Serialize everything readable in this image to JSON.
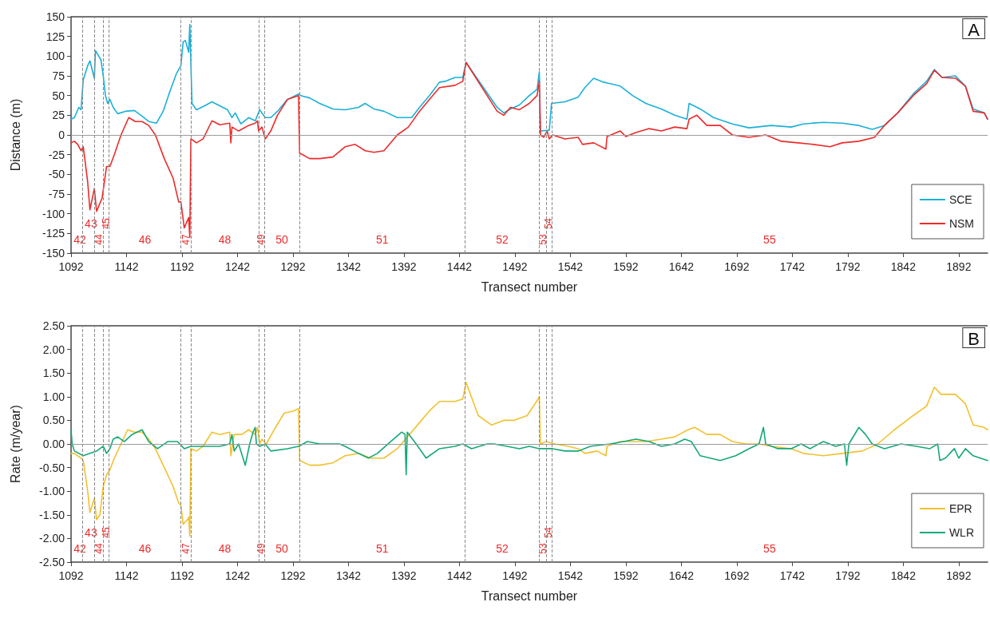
{
  "chart_data": [
    {
      "type": "line",
      "xlabel": "Transect number",
      "ylabel": "Distance (m)",
      "xlim": [
        1092,
        1918
      ],
      "xticks": [
        1092,
        1142,
        1192,
        1242,
        1292,
        1342,
        1392,
        1442,
        1492,
        1542,
        1592,
        1642,
        1692,
        1742,
        1792,
        1842,
        1892
      ],
      "ylim": [
        -150,
        150
      ],
      "yticks": [
        -150,
        -125,
        -100,
        -75,
        -50,
        -25,
        0,
        25,
        50,
        75,
        100,
        125,
        150
      ],
      "grid": false,
      "legend": "bottom right",
      "marker": "none",
      "line_style": "solid",
      "series": [
        {
          "name": "SCE",
          "color": "#1ab0d8",
          "x": [
            1092,
            1095,
            1099,
            1101,
            1103,
            1107,
            1109,
            1113,
            1114,
            1117,
            1119,
            1121,
            1123,
            1125,
            1127,
            1130,
            1134,
            1141,
            1149,
            1155,
            1162,
            1169,
            1175,
            1181,
            1187,
            1191,
            1193,
            1195,
            1198,
            1199,
            1201,
            1205,
            1211,
            1219,
            1226,
            1233,
            1237,
            1240,
            1245,
            1252,
            1258,
            1262,
            1267,
            1272,
            1278,
            1287,
            1297,
            1299,
            1307,
            1316,
            1328,
            1339,
            1351,
            1357,
            1365,
            1374,
            1386,
            1399,
            1406,
            1415,
            1424,
            1429,
            1438,
            1445,
            1448,
            1476,
            1482,
            1488,
            1496,
            1505,
            1512,
            1514,
            1515,
            1523,
            1525,
            1537,
            1549,
            1555,
            1563,
            1572,
            1587,
            1598,
            1610,
            1624,
            1636,
            1647,
            1649,
            1659,
            1671,
            1688,
            1703,
            1723,
            1741,
            1752,
            1770,
            1787,
            1802,
            1814,
            1825,
            1837,
            1851,
            1863,
            1870,
            1877,
            1889,
            1898,
            1905,
            1915,
            1918
          ],
          "values": [
            20,
            22,
            35,
            32,
            70,
            88,
            94,
            72,
            107,
            100,
            95,
            75,
            50,
            40,
            45,
            35,
            27,
            30,
            31,
            25,
            17,
            15,
            30,
            55,
            78,
            88,
            118,
            120,
            105,
            140,
            40,
            32,
            36,
            42,
            37,
            32,
            22,
            28,
            14,
            22,
            18,
            32,
            22,
            22,
            30,
            45,
            52,
            50,
            47,
            40,
            33,
            32,
            35,
            40,
            33,
            30,
            22,
            22,
            35,
            50,
            67,
            68,
            73,
            73,
            92,
            35,
            28,
            33,
            38,
            50,
            58,
            80,
            5,
            6,
            40,
            42,
            48,
            60,
            72,
            67,
            62,
            50,
            40,
            33,
            25,
            20,
            40,
            33,
            22,
            14,
            9,
            12,
            10,
            14,
            16,
            15,
            12,
            7,
            12,
            28,
            52,
            68,
            83,
            73,
            75,
            62,
            33,
            28,
            20
          ]
        },
        {
          "name": "NSM",
          "color": "#ee2a2a",
          "x": [
            1092,
            1095,
            1098,
            1101,
            1103,
            1107,
            1109,
            1113,
            1115,
            1120,
            1123,
            1124,
            1127,
            1131,
            1137,
            1144,
            1150,
            1156,
            1162,
            1168,
            1176,
            1184,
            1189,
            1191,
            1194,
            1198,
            1199,
            1200,
            1205,
            1211,
            1219,
            1226,
            1235,
            1236,
            1237,
            1243,
            1252,
            1258,
            1260,
            1261,
            1264,
            1267,
            1272,
            1278,
            1287,
            1297,
            1298,
            1307,
            1316,
            1328,
            1339,
            1348,
            1357,
            1365,
            1374,
            1386,
            1396,
            1406,
            1415,
            1424,
            1438,
            1445,
            1448,
            1476,
            1482,
            1488,
            1496,
            1505,
            1512,
            1514,
            1515,
            1518,
            1521,
            1523,
            1526,
            1537,
            1549,
            1553,
            1563,
            1574,
            1575,
            1587,
            1592,
            1601,
            1613,
            1624,
            1636,
            1647,
            1649,
            1656,
            1665,
            1677,
            1688,
            1703,
            1718,
            1732,
            1747,
            1761,
            1776,
            1787,
            1802,
            1816,
            1825,
            1837,
            1851,
            1863,
            1870,
            1877,
            1889,
            1898,
            1905,
            1915,
            1918
          ],
          "values": [
            -10,
            -8,
            -12,
            -20,
            -15,
            -60,
            -95,
            -68,
            -97,
            -80,
            -50,
            -40,
            -40,
            -25,
            0,
            22,
            17,
            17,
            12,
            0,
            -30,
            -55,
            -85,
            -85,
            -118,
            -105,
            -130,
            -5,
            -10,
            -5,
            18,
            13,
            15,
            -10,
            10,
            5,
            12,
            15,
            18,
            5,
            10,
            -5,
            5,
            25,
            45,
            50,
            -23,
            -30,
            -30,
            -28,
            -15,
            -12,
            -20,
            -22,
            -20,
            0,
            10,
            30,
            45,
            60,
            63,
            68,
            92,
            30,
            25,
            35,
            32,
            40,
            50,
            68,
            0,
            -3,
            5,
            -5,
            0,
            -5,
            -3,
            -12,
            -10,
            -18,
            -2,
            5,
            -2,
            3,
            8,
            5,
            10,
            8,
            20,
            25,
            12,
            12,
            0,
            -3,
            0,
            -8,
            -10,
            -12,
            -15,
            -10,
            -8,
            -3,
            12,
            28,
            50,
            65,
            82,
            73,
            72,
            62,
            30,
            28,
            20
          ]
        }
      ],
      "ref_lines": [
        {
          "axis": "y",
          "value": 0
        },
        {
          "axis": "x",
          "value": 1102
        },
        {
          "axis": "x",
          "value": 1113
        },
        {
          "axis": "x",
          "value": 1121
        },
        {
          "axis": "x",
          "value": 1126
        },
        {
          "axis": "x",
          "value": 1191
        },
        {
          "axis": "x",
          "value": 1200
        },
        {
          "axis": "x",
          "value": 1261
        },
        {
          "axis": "x",
          "value": 1266
        },
        {
          "axis": "x",
          "value": 1298
        },
        {
          "axis": "x",
          "value": 1447
        },
        {
          "axis": "x",
          "value": 1514
        },
        {
          "axis": "x",
          "value": 1520
        },
        {
          "axis": "x",
          "value": 1525
        }
      ],
      "annotations": [
        "A",
        "42",
        "43",
        "44",
        "45",
        "46",
        "47",
        "48",
        "49",
        "50",
        "51",
        "52",
        "53",
        "54",
        "55"
      ]
    },
    {
      "type": "line",
      "xlabel": "Transect number",
      "ylabel": "Rate (m/year)",
      "xlim": [
        1092,
        1918
      ],
      "xticks": [
        1092,
        1142,
        1192,
        1242,
        1292,
        1342,
        1392,
        1442,
        1492,
        1542,
        1592,
        1642,
        1692,
        1742,
        1792,
        1842,
        1892
      ],
      "ylim": [
        -2.5,
        2.5
      ],
      "yticks": [
        {
          "value": -2.5,
          "label": "-2.50"
        },
        {
          "value": -2,
          "label": "-2.00"
        },
        {
          "value": -1.5,
          "label": "-1.50"
        },
        {
          "value": -1,
          "label": "-1.00"
        },
        {
          "value": -0.5,
          "label": "-0.50"
        },
        {
          "value": 0,
          "label": "0.00"
        },
        {
          "value": 0.5,
          "label": "0.50"
        },
        {
          "value": 1,
          "label": "1.00"
        },
        {
          "value": 1.5,
          "label": "1.50"
        },
        {
          "value": 2,
          "label": "2.00"
        },
        {
          "value": 2.5,
          "label": "2.50"
        }
      ],
      "grid": false,
      "legend": "bottom right",
      "marker": "none",
      "line_style": "solid",
      "series": [
        {
          "name": "EPR",
          "color": "#f2c12e",
          "x": [
            1092,
            1095,
            1101,
            1103,
            1107,
            1109,
            1113,
            1115,
            1118,
            1121,
            1124,
            1127,
            1131,
            1137,
            1143,
            1149,
            1156,
            1162,
            1168,
            1176,
            1184,
            1189,
            1191,
            1193,
            1197,
            1198,
            1199,
            1200,
            1205,
            1211,
            1219,
            1226,
            1235,
            1236,
            1239,
            1246,
            1252,
            1258,
            1260,
            1262,
            1264,
            1268,
            1275,
            1284,
            1293,
            1297,
            1298,
            1307,
            1316,
            1328,
            1339,
            1351,
            1362,
            1374,
            1386,
            1397,
            1406,
            1415,
            1424,
            1438,
            1445,
            1448,
            1459,
            1471,
            1482,
            1491,
            1503,
            1513,
            1514,
            1515,
            1520,
            1528,
            1540,
            1549,
            1555,
            1566,
            1574,
            1575,
            1587,
            1598,
            1610,
            1624,
            1636,
            1648,
            1654,
            1665,
            1677,
            1688,
            1700,
            1712,
            1723,
            1741,
            1752,
            1770,
            1787,
            1805,
            1819,
            1834,
            1851,
            1863,
            1870,
            1876,
            1889,
            1898,
            1905,
            1915,
            1918
          ],
          "values": [
            -0.2,
            -0.2,
            -0.3,
            -0.35,
            -1.0,
            -1.45,
            -1.15,
            -1.6,
            -1.5,
            -0.9,
            -0.65,
            -0.55,
            -0.3,
            0,
            0.3,
            0.25,
            0.25,
            0.1,
            -0.1,
            -0.5,
            -0.9,
            -1.25,
            -1.3,
            -1.7,
            -1.6,
            -1.55,
            -1.95,
            -0.1,
            -0.15,
            -0.05,
            0.25,
            0.2,
            0.25,
            -0.25,
            0.2,
            0.2,
            0.3,
            0.2,
            0.35,
            0,
            0.1,
            0,
            0.3,
            0.65,
            0.7,
            0.75,
            -0.35,
            -0.45,
            -0.45,
            -0.4,
            -0.25,
            -0.2,
            -0.3,
            -0.3,
            -0.1,
            0.2,
            0.45,
            0.7,
            0.9,
            0.9,
            0.95,
            1.3,
            0.6,
            0.4,
            0.5,
            0.5,
            0.6,
            0.95,
            1.0,
            0,
            0.05,
            0,
            -0.05,
            -0.1,
            -0.2,
            -0.15,
            -0.25,
            -0.05,
            0.05,
            0.05,
            0.05,
            0.1,
            0.15,
            0.3,
            0.35,
            0.2,
            0.2,
            0.05,
            0,
            0,
            -0.05,
            -0.1,
            -0.2,
            -0.25,
            -0.2,
            -0.15,
            0,
            0.3,
            0.6,
            0.8,
            1.2,
            1.05,
            1.05,
            0.85,
            0.4,
            0.35,
            0.3
          ]
        },
        {
          "name": "WLR",
          "color": "#14a87a",
          "x": [
            1092,
            1093,
            1095,
            1103,
            1109,
            1115,
            1121,
            1124,
            1127,
            1130,
            1134,
            1140,
            1147,
            1156,
            1162,
            1170,
            1179,
            1188,
            1194,
            1200,
            1211,
            1226,
            1235,
            1237,
            1239,
            1243,
            1249,
            1253,
            1256,
            1258,
            1259,
            1262,
            1267,
            1272,
            1287,
            1297,
            1305,
            1316,
            1334,
            1339,
            1351,
            1360,
            1368,
            1380,
            1390,
            1393,
            1394,
            1395,
            1403,
            1412,
            1424,
            1438,
            1445,
            1453,
            1467,
            1473,
            1485,
            1496,
            1505,
            1514,
            1526,
            1537,
            1549,
            1560,
            1578,
            1590,
            1601,
            1613,
            1624,
            1636,
            1645,
            1651,
            1659,
            1677,
            1691,
            1703,
            1712,
            1716,
            1718,
            1729,
            1741,
            1750,
            1758,
            1770,
            1781,
            1789,
            1791,
            1793,
            1802,
            1808,
            1814,
            1825,
            1840,
            1854,
            1866,
            1873,
            1875,
            1880,
            1888,
            1892,
            1898,
            1905,
            1918
          ],
          "values": [
            0.3,
            0,
            -0.15,
            -0.25,
            -0.2,
            -0.15,
            -0.05,
            -0.2,
            -0.1,
            0.1,
            0.15,
            0.05,
            0.2,
            0.3,
            0.05,
            -0.1,
            0.05,
            0.05,
            -0.1,
            -0.05,
            -0.05,
            -0.05,
            0,
            0.2,
            -0.15,
            0,
            -0.45,
            0,
            0.25,
            0.35,
            0,
            -0.05,
            0,
            -0.15,
            -0.1,
            -0.05,
            0.05,
            0,
            0,
            -0.05,
            -0.2,
            -0.3,
            -0.2,
            0.05,
            0.25,
            0.2,
            -0.65,
            0.25,
            0,
            -0.3,
            -0.1,
            -0.05,
            0,
            -0.1,
            0,
            0,
            -0.05,
            -0.1,
            -0.05,
            -0.1,
            -0.1,
            -0.15,
            -0.15,
            -0.05,
            0,
            0.05,
            0.1,
            0.05,
            -0.05,
            0,
            0.1,
            0.05,
            -0.25,
            -0.35,
            -0.25,
            -0.1,
            0,
            0.35,
            0,
            -0.1,
            -0.1,
            0,
            -0.1,
            0.05,
            -0.05,
            0,
            -0.45,
            0,
            0.35,
            0.2,
            0,
            -0.1,
            0,
            -0.05,
            -0.1,
            0,
            -0.35,
            -0.3,
            -0.1,
            -0.3,
            -0.1,
            -0.25,
            -0.35
          ]
        }
      ],
      "ref_lines": [
        {
          "axis": "y",
          "value": 0
        },
        {
          "axis": "x",
          "value": 1102
        },
        {
          "axis": "x",
          "value": 1113
        },
        {
          "axis": "x",
          "value": 1121
        },
        {
          "axis": "x",
          "value": 1126
        },
        {
          "axis": "x",
          "value": 1191
        },
        {
          "axis": "x",
          "value": 1200
        },
        {
          "axis": "x",
          "value": 1261
        },
        {
          "axis": "x",
          "value": 1266
        },
        {
          "axis": "x",
          "value": 1298
        },
        {
          "axis": "x",
          "value": 1447
        },
        {
          "axis": "x",
          "value": 1514
        },
        {
          "axis": "x",
          "value": 1520
        },
        {
          "axis": "x",
          "value": 1525
        }
      ],
      "annotations": [
        "B",
        "42",
        "43",
        "44",
        "45",
        "46",
        "47",
        "48",
        "49",
        "50",
        "51",
        "52",
        "53",
        "54",
        "55"
      ]
    }
  ]
}
